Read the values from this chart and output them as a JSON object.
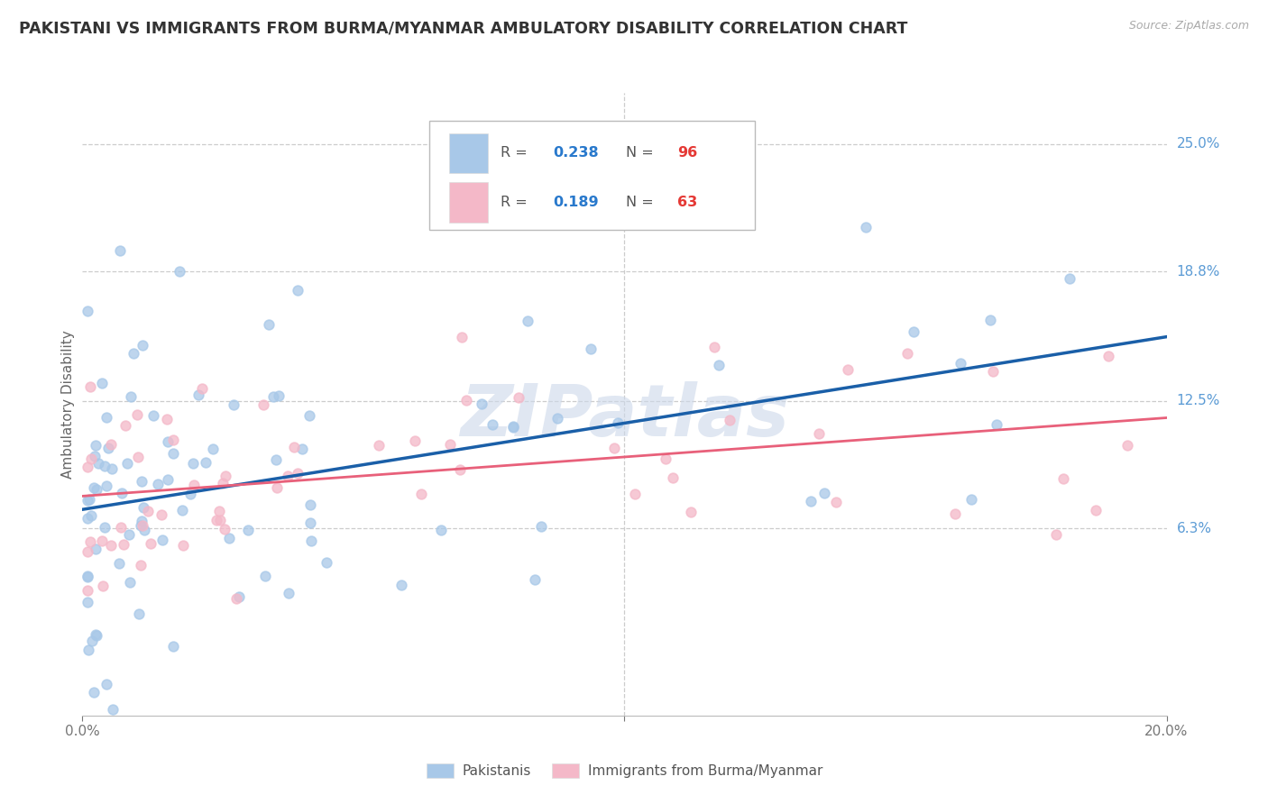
{
  "title": "PAKISTANI VS IMMIGRANTS FROM BURMA/MYANMAR AMBULATORY DISABILITY CORRELATION CHART",
  "source": "Source: ZipAtlas.com",
  "ylabel": "Ambulatory Disability",
  "series1_label": "Pakistanis",
  "series2_label": "Immigrants from Burma/Myanmar",
  "series1_color": "#a8c8e8",
  "series2_color": "#f4b8c8",
  "series1_line_color": "#1a5fa8",
  "series2_line_color": "#e8607a",
  "series1_R": 0.238,
  "series1_N": 96,
  "series2_R": 0.189,
  "series2_N": 63,
  "watermark_text": "ZIPatlas",
  "background_color": "#ffffff",
  "grid_color": "#cccccc",
  "xlim": [
    0.0,
    0.2
  ],
  "ylim": [
    -0.028,
    0.275
  ],
  "yticks": [
    0.063,
    0.125,
    0.188,
    0.25
  ],
  "ytick_labels": [
    "6.3%",
    "12.5%",
    "18.8%",
    "25.0%"
  ],
  "title_color": "#333333",
  "right_axis_color": "#5b9bd5",
  "source_color": "#aaaaaa",
  "legend_r1_color": "#2979cc",
  "legend_n1_color": "#e53935",
  "legend_r2_color": "#2979cc",
  "legend_n2_color": "#e53935",
  "legend_text_color": "#555555"
}
